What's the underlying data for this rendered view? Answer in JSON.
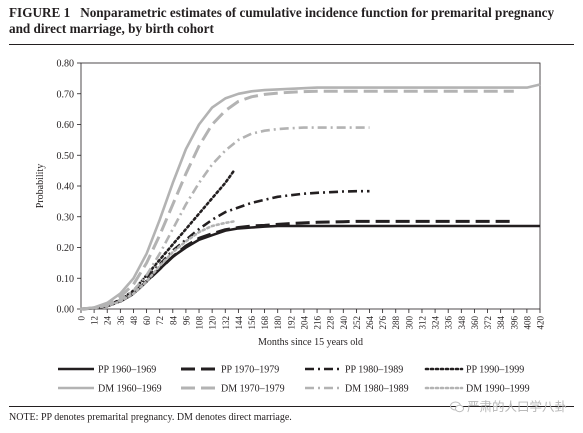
{
  "figure": {
    "label": "FIGURE 1",
    "title": "Nonparametric estimates of cumulative incidence function for premarital pregnancy and direct marriage, by birth cohort",
    "note": "NOTE: PP denotes premarital pregnancy. DM denotes direct marriage.",
    "watermark": "严肃的人口学八卦"
  },
  "chart_data": {
    "type": "line",
    "xlabel": "Months since 15 years old",
    "ylabel": "Probability",
    "xlim": [
      0,
      420
    ],
    "ylim": [
      0,
      0.8
    ],
    "xticks": [
      0,
      12,
      24,
      36,
      48,
      60,
      72,
      84,
      96,
      108,
      120,
      132,
      144,
      156,
      168,
      180,
      192,
      204,
      216,
      228,
      240,
      252,
      264,
      276,
      288,
      300,
      312,
      324,
      336,
      348,
      360,
      372,
      384,
      396,
      408,
      420
    ],
    "yticks": [
      0.0,
      0.1,
      0.2,
      0.3,
      0.4,
      0.5,
      0.6,
      0.7,
      0.8
    ],
    "ytick_labels": [
      "0.00",
      "0.10",
      "0.20",
      "0.30",
      "0.40",
      "0.50",
      "0.60",
      "0.70",
      "0.80"
    ],
    "grid": false,
    "legend_position": "bottom",
    "series": [
      {
        "name": "PP 1960–1969",
        "color": "#231f20",
        "dash": "solid",
        "width": 2.6,
        "x": [
          0,
          12,
          24,
          36,
          48,
          60,
          72,
          84,
          96,
          108,
          120,
          132,
          144,
          156,
          168,
          180,
          192,
          204,
          216,
          228,
          240,
          252,
          264,
          276,
          288,
          300,
          312,
          324,
          336,
          348,
          360,
          372,
          384,
          396,
          408,
          420
        ],
        "y": [
          0,
          0.003,
          0.01,
          0.025,
          0.05,
          0.09,
          0.13,
          0.17,
          0.2,
          0.225,
          0.24,
          0.255,
          0.262,
          0.265,
          0.268,
          0.27,
          0.27,
          0.27,
          0.27,
          0.27,
          0.27,
          0.27,
          0.27,
          0.27,
          0.27,
          0.27,
          0.27,
          0.27,
          0.27,
          0.27,
          0.27,
          0.27,
          0.27,
          0.27,
          0.27,
          0.27
        ]
      },
      {
        "name": "PP 1970–1979",
        "color": "#231f20",
        "dash": "longdash",
        "width": 3,
        "x": [
          0,
          12,
          24,
          36,
          48,
          60,
          72,
          84,
          96,
          108,
          120,
          132,
          144,
          156,
          168,
          180,
          192,
          204,
          216,
          228,
          240,
          252,
          264,
          276,
          288,
          300,
          312,
          324,
          336,
          348,
          360,
          372,
          384,
          396
        ],
        "y": [
          0,
          0.003,
          0.01,
          0.025,
          0.05,
          0.09,
          0.13,
          0.17,
          0.205,
          0.23,
          0.245,
          0.258,
          0.265,
          0.27,
          0.272,
          0.275,
          0.278,
          0.28,
          0.282,
          0.283,
          0.284,
          0.285,
          0.285,
          0.285,
          0.285,
          0.285,
          0.285,
          0.285,
          0.285,
          0.285,
          0.285,
          0.285,
          0.285,
          0.285
        ]
      },
      {
        "name": "PP 1980–1989",
        "color": "#231f20",
        "dash": "dashdot",
        "width": 2.6,
        "x": [
          0,
          12,
          24,
          36,
          48,
          60,
          72,
          84,
          96,
          108,
          120,
          132,
          144,
          156,
          168,
          180,
          192,
          204,
          216,
          228,
          240,
          252,
          264
        ],
        "y": [
          0,
          0.003,
          0.01,
          0.025,
          0.055,
          0.1,
          0.145,
          0.19,
          0.225,
          0.26,
          0.29,
          0.315,
          0.33,
          0.345,
          0.355,
          0.365,
          0.37,
          0.375,
          0.378,
          0.38,
          0.382,
          0.383,
          0.383
        ]
      },
      {
        "name": "PP 1990–1999",
        "color": "#231f20",
        "dash": "dot",
        "width": 2.6,
        "x": [
          0,
          12,
          24,
          36,
          48,
          60,
          72,
          84,
          96,
          108,
          120,
          132,
          140
        ],
        "y": [
          0,
          0.003,
          0.012,
          0.03,
          0.06,
          0.11,
          0.16,
          0.21,
          0.26,
          0.31,
          0.36,
          0.41,
          0.45
        ]
      },
      {
        "name": "DM 1960–1969",
        "color": "#b3b3b3",
        "dash": "solid",
        "width": 2.6,
        "x": [
          0,
          12,
          24,
          36,
          48,
          60,
          72,
          84,
          96,
          108,
          120,
          132,
          144,
          156,
          168,
          180,
          192,
          204,
          216,
          228,
          240,
          252,
          264,
          276,
          288,
          300,
          312,
          324,
          336,
          348,
          360,
          372,
          384,
          396,
          408,
          420
        ],
        "y": [
          0,
          0.005,
          0.02,
          0.05,
          0.1,
          0.18,
          0.29,
          0.41,
          0.52,
          0.6,
          0.655,
          0.685,
          0.7,
          0.708,
          0.712,
          0.714,
          0.716,
          0.718,
          0.72,
          0.72,
          0.72,
          0.72,
          0.72,
          0.72,
          0.72,
          0.72,
          0.72,
          0.72,
          0.72,
          0.72,
          0.72,
          0.72,
          0.72,
          0.72,
          0.72,
          0.73
        ]
      },
      {
        "name": "DM 1970–1979",
        "color": "#b3b3b3",
        "dash": "longdash",
        "width": 3,
        "x": [
          0,
          12,
          24,
          36,
          48,
          60,
          72,
          84,
          96,
          108,
          120,
          132,
          144,
          156,
          168,
          180,
          192,
          204,
          216,
          228,
          240,
          252,
          264,
          276,
          288,
          300,
          312,
          324,
          336,
          348,
          360,
          372,
          384,
          396
        ],
        "y": [
          0,
          0.004,
          0.015,
          0.04,
          0.08,
          0.15,
          0.24,
          0.34,
          0.44,
          0.53,
          0.6,
          0.645,
          0.675,
          0.69,
          0.698,
          0.702,
          0.705,
          0.707,
          0.708,
          0.708,
          0.708,
          0.708,
          0.708,
          0.708,
          0.708,
          0.708,
          0.708,
          0.708,
          0.708,
          0.708,
          0.708,
          0.708,
          0.708,
          0.708
        ]
      },
      {
        "name": "DM 1980–1989",
        "color": "#b3b3b3",
        "dash": "dashdot",
        "width": 2.6,
        "x": [
          0,
          12,
          24,
          36,
          48,
          60,
          72,
          84,
          96,
          108,
          120,
          132,
          144,
          156,
          168,
          180,
          192,
          204,
          216,
          228,
          240,
          252,
          264
        ],
        "y": [
          0,
          0.004,
          0.012,
          0.03,
          0.06,
          0.11,
          0.18,
          0.26,
          0.34,
          0.41,
          0.47,
          0.515,
          0.55,
          0.57,
          0.58,
          0.585,
          0.588,
          0.59,
          0.59,
          0.59,
          0.59,
          0.59,
          0.59
        ]
      },
      {
        "name": "DM 1990–1999",
        "color": "#b3b3b3",
        "dash": "dot",
        "width": 2.6,
        "x": [
          0,
          12,
          24,
          36,
          48,
          60,
          72,
          84,
          96,
          108,
          120,
          132,
          140
        ],
        "y": [
          0,
          0.003,
          0.01,
          0.025,
          0.05,
          0.09,
          0.14,
          0.185,
          0.22,
          0.25,
          0.27,
          0.28,
          0.285
        ]
      }
    ]
  }
}
